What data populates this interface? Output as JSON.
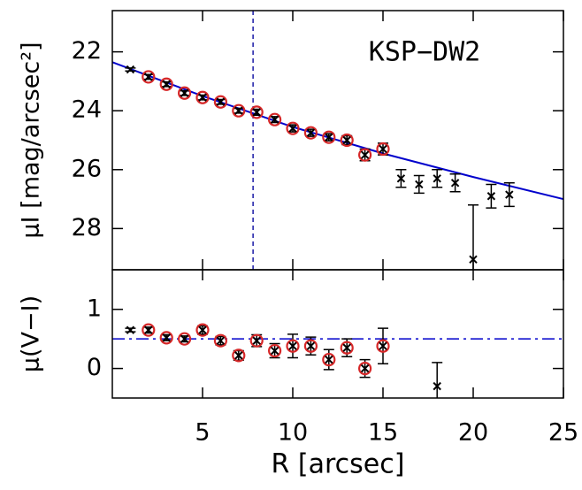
{
  "chart_data": [
    {
      "type": "scatter",
      "annotation": "KSP−DW2",
      "ylabel": "μI [mag/arcsec²]",
      "xlim": [
        0,
        25
      ],
      "xticks": [
        5,
        10,
        15,
        20,
        25
      ],
      "xtick_labels": false,
      "ylim": [
        29.4,
        20.6
      ],
      "yticks": [
        22,
        24,
        26,
        28
      ],
      "vline": 7.8,
      "vline_color": "#1a1aa6",
      "lines": [
        {
          "color": "#0000cc",
          "x": [
            0,
            5,
            10,
            15,
            20,
            25
          ],
          "values": [
            22.35,
            23.5,
            24.55,
            25.45,
            26.25,
            27.0
          ]
        }
      ],
      "points": {
        "color": "#000000",
        "circle_color": "#d62728",
        "x": [
          1,
          2,
          3,
          4,
          5,
          6,
          7,
          8,
          9,
          10,
          11,
          12,
          13,
          14,
          15,
          16,
          17,
          18,
          19,
          20,
          21,
          22
        ],
        "values": [
          22.6,
          22.85,
          23.1,
          23.4,
          23.55,
          23.7,
          24.0,
          24.05,
          24.3,
          24.6,
          24.75,
          24.9,
          25.0,
          25.5,
          25.3,
          26.3,
          26.5,
          26.3,
          26.45,
          29.05,
          26.9,
          26.85
        ],
        "errors": [
          0.05,
          0.08,
          0.08,
          0.08,
          0.08,
          0.08,
          0.08,
          0.1,
          0.1,
          0.12,
          0.12,
          0.12,
          0.15,
          0.2,
          0.2,
          0.3,
          0.3,
          0.3,
          0.3,
          1.85,
          0.4,
          0.4
        ],
        "circled": [
          false,
          true,
          true,
          true,
          true,
          true,
          true,
          true,
          true,
          true,
          true,
          true,
          true,
          true,
          true,
          false,
          false,
          false,
          false,
          false,
          false,
          false
        ]
      }
    },
    {
      "type": "scatter",
      "ylabel": "μ(V−I)",
      "xlabel": "R [arcsec]",
      "xlim": [
        0,
        25
      ],
      "xticks": [
        5,
        10,
        15,
        20,
        25
      ],
      "xtick_labels": true,
      "ylim": [
        -0.5,
        1.67
      ],
      "yticks": [
        0,
        1
      ],
      "hline": 0.5,
      "hline_color": "#0000cc",
      "points": {
        "color": "#000000",
        "circle_color": "#d62728",
        "x": [
          1,
          2,
          3,
          4,
          5,
          6,
          7,
          8,
          9,
          10,
          11,
          12,
          13,
          14,
          15,
          18
        ],
        "values": [
          0.65,
          0.65,
          0.52,
          0.5,
          0.65,
          0.47,
          0.22,
          0.47,
          0.3,
          0.38,
          0.38,
          0.15,
          0.35,
          0.0,
          0.38,
          -0.3
        ],
        "errors": [
          0.03,
          0.05,
          0.05,
          0.05,
          0.07,
          0.07,
          0.08,
          0.1,
          0.12,
          0.2,
          0.15,
          0.17,
          0.15,
          0.15,
          0.3,
          0.4
        ],
        "circled": [
          false,
          true,
          true,
          true,
          true,
          true,
          true,
          true,
          true,
          true,
          true,
          true,
          true,
          true,
          true,
          false
        ]
      }
    }
  ]
}
